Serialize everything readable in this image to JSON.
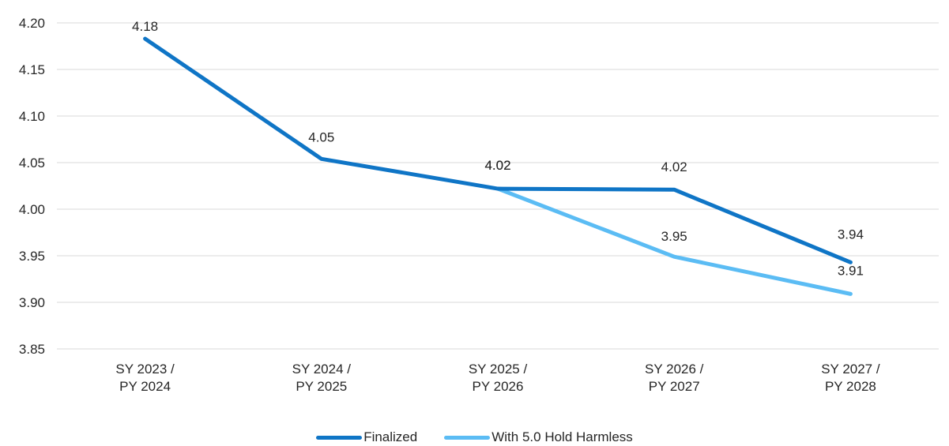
{
  "chart_data": {
    "type": "line",
    "categories": [
      [
        "SY 2023 /",
        "PY 2024"
      ],
      [
        "SY 2024 /",
        "PY 2025"
      ],
      [
        "SY 2025 /",
        "PY 2026"
      ],
      [
        "SY 2026 /",
        "PY 2027"
      ],
      [
        "SY 2027 /",
        "PY 2028"
      ]
    ],
    "ylim": [
      3.85,
      4.2
    ],
    "yticks": [
      "4.20",
      "4.15",
      "4.10",
      "4.05",
      "4.00",
      "3.95",
      "3.90",
      "3.85"
    ],
    "grid": true,
    "legend_position": "bottom",
    "series": [
      {
        "name": "Finalized",
        "color": "#0f75c6",
        "values": [
          4.183,
          4.054,
          4.022,
          4.021,
          3.943
        ],
        "labels": [
          "4.18",
          "4.05",
          "4.02",
          "4.02",
          "3.94"
        ]
      },
      {
        "name": "With 5.0 Hold Harmless",
        "color": "#5bbcf4",
        "values": [
          null,
          null,
          4.022,
          3.949,
          3.909
        ],
        "labels": [
          null,
          null,
          "4.02",
          "3.95",
          "3.91"
        ]
      }
    ]
  }
}
